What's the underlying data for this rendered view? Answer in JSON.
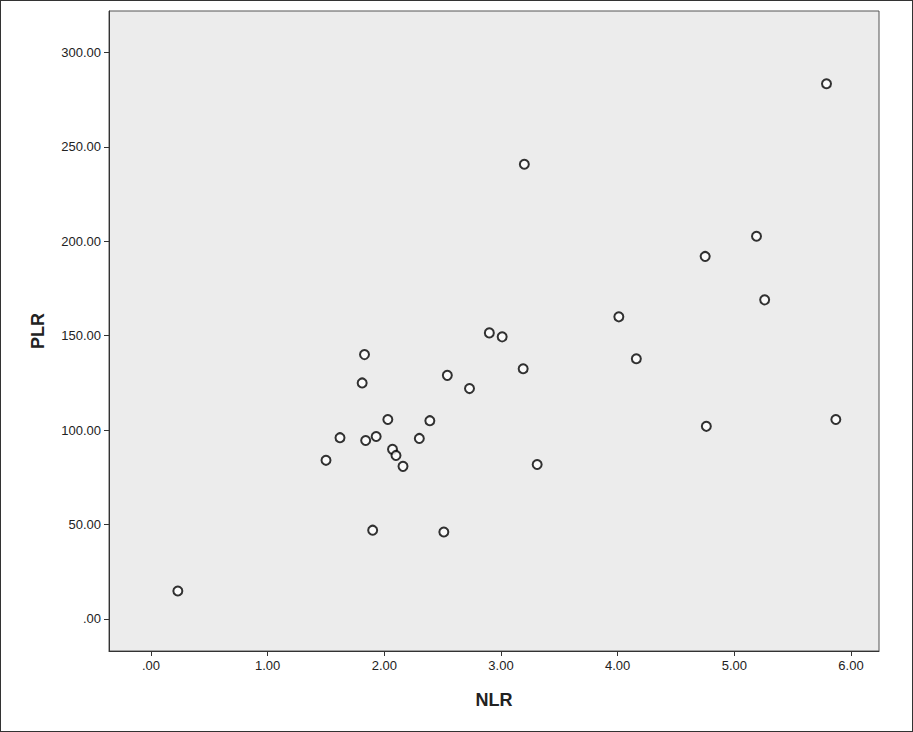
{
  "chart_data": {
    "type": "scatter",
    "x_label": "NLR",
    "y_label": "PLR",
    "x": [
      0.23,
      1.5,
      1.62,
      1.83,
      1.81,
      1.84,
      1.93,
      1.9,
      2.03,
      2.07,
      2.1,
      2.16,
      2.3,
      2.39,
      2.51,
      2.54,
      2.73,
      2.9,
      3.01,
      3.19,
      3.2,
      3.31,
      4.01,
      4.16,
      4.75,
      4.76,
      5.19,
      5.26,
      5.79,
      5.87
    ],
    "values": [
      14.8,
      84,
      96,
      140,
      125,
      94.5,
      96.6,
      47,
      105.6,
      89.8,
      86.6,
      80.8,
      95.6,
      105,
      46,
      129,
      122,
      151.5,
      149.4,
      132.5,
      240.8,
      81.8,
      160,
      137.8,
      192,
      102,
      202.7,
      169,
      283.5,
      105.6
    ],
    "color": "#000000",
    "marker": "circle",
    "grid": false,
    "xlim": [
      -0.36,
      6.24
    ],
    "xticks": [
      {
        "value": 0,
        "label": ".00"
      },
      {
        "value": 1,
        "label": "1.00"
      },
      {
        "value": 2,
        "label": "2.00"
      },
      {
        "value": 3,
        "label": "3.00"
      },
      {
        "value": 4,
        "label": "4.00"
      },
      {
        "value": 5,
        "label": "5.00"
      },
      {
        "value": 6,
        "label": "6.00"
      }
    ],
    "ylim": [
      -17,
      322
    ],
    "yticks": [
      {
        "value": 0,
        "label": ".00"
      },
      {
        "value": 50,
        "label": "50.00"
      },
      {
        "value": 100,
        "label": "100.00"
      },
      {
        "value": 150,
        "label": "150.00"
      },
      {
        "value": 200,
        "label": "200.00"
      },
      {
        "value": 250,
        "label": "250.00"
      },
      {
        "value": 300,
        "label": "300.00"
      }
    ]
  }
}
